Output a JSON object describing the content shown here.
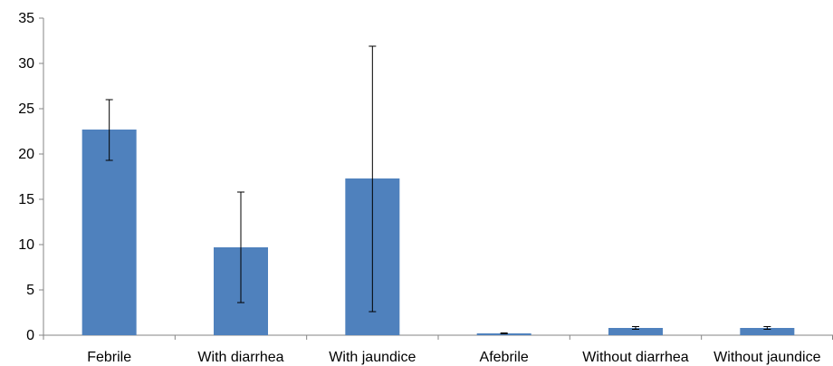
{
  "chart_data": {
    "type": "bar",
    "title": "",
    "xlabel": "",
    "ylabel": "",
    "categories": [
      "Febrile",
      "With diarrhea",
      "With jaundice",
      "Afebrile",
      "Without diarrhea",
      "Without jaundice"
    ],
    "values": [
      22.7,
      9.7,
      17.3,
      0.2,
      0.8,
      0.8
    ],
    "error_low": [
      19.3,
      3.6,
      2.6,
      0.15,
      0.65,
      0.65
    ],
    "error_high": [
      26.0,
      15.8,
      31.9,
      0.25,
      0.95,
      0.95
    ],
    "ylim": [
      0,
      35
    ],
    "yticks": [
      0,
      5,
      10,
      15,
      20,
      25,
      30,
      35
    ],
    "grid": false,
    "legend": "none",
    "bar_color": "#4f81bd",
    "axis_color": "#868686"
  }
}
